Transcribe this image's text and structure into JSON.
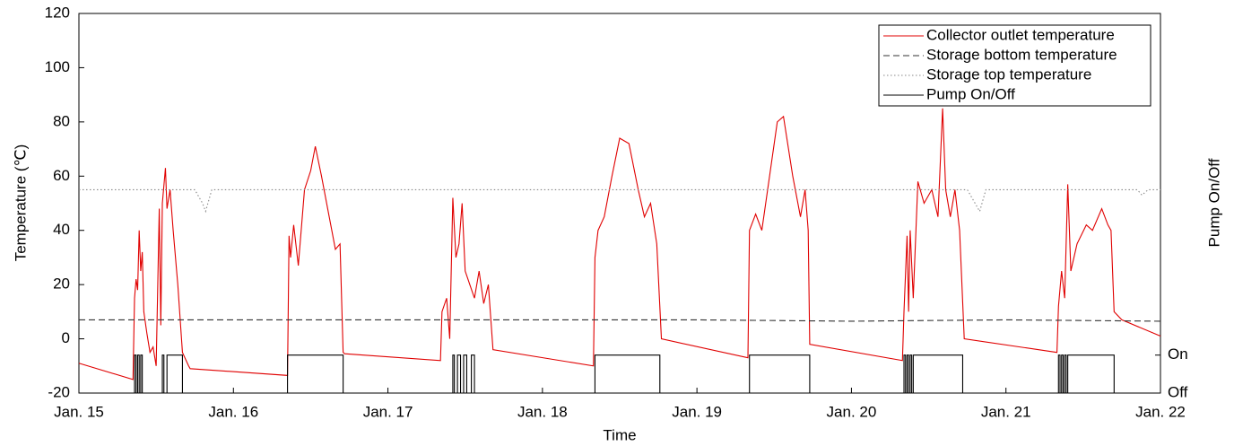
{
  "chart_data": {
    "type": "line",
    "xlabel": "Time",
    "ylabel": "Temperature (℃)",
    "y2label": "Pump On/Off",
    "xlim": [
      0,
      7
    ],
    "xticks": [
      {
        "value": 0,
        "label": "Jan. 15"
      },
      {
        "value": 1,
        "label": "Jan. 16"
      },
      {
        "value": 2,
        "label": "Jan. 17"
      },
      {
        "value": 3,
        "label": "Jan. 18"
      },
      {
        "value": 4,
        "label": "Jan. 19"
      },
      {
        "value": 5,
        "label": "Jan. 20"
      },
      {
        "value": 6,
        "label": "Jan. 21"
      },
      {
        "value": 7,
        "label": "Jan. 22"
      }
    ],
    "ylim": [
      -20,
      120
    ],
    "yticks": [
      -20,
      0,
      20,
      40,
      60,
      80,
      100,
      120
    ],
    "y2lim": [
      0,
      10
    ],
    "y2ticks": [
      {
        "value": 0,
        "label": "Off"
      },
      {
        "value": 1,
        "label": "On"
      }
    ],
    "legend": "upper right",
    "series": [
      {
        "name": "Collector outlet temperature",
        "color": "#e00000",
        "linestyle": "solid",
        "x": [
          0,
          0.35,
          0.36,
          0.37,
          0.38,
          0.39,
          0.4,
          0.41,
          0.42,
          0.44,
          0.46,
          0.48,
          0.5,
          0.52,
          0.53,
          0.54,
          0.56,
          0.57,
          0.59,
          0.61,
          0.64,
          0.67,
          0.71,
          0.72,
          1.35,
          1.36,
          1.37,
          1.39,
          1.42,
          1.46,
          1.5,
          1.53,
          1.57,
          1.62,
          1.66,
          1.69,
          1.71,
          1.72,
          2.34,
          2.35,
          2.38,
          2.4,
          2.42,
          2.44,
          2.46,
          2.48,
          2.5,
          2.53,
          2.56,
          2.59,
          2.62,
          2.65,
          2.68,
          3.33,
          3.34,
          3.36,
          3.4,
          3.45,
          3.5,
          3.56,
          3.62,
          3.66,
          3.7,
          3.74,
          3.77,
          4.33,
          4.34,
          4.38,
          4.42,
          4.47,
          4.52,
          4.56,
          4.62,
          4.67,
          4.7,
          4.72,
          4.73,
          5.33,
          5.34,
          5.36,
          5.37,
          5.38,
          5.4,
          5.43,
          5.47,
          5.52,
          5.56,
          5.59,
          5.61,
          5.64,
          5.67,
          5.7,
          5.73,
          6.33,
          6.34,
          6.36,
          6.38,
          6.4,
          6.42,
          6.46,
          6.52,
          6.56,
          6.62,
          6.66,
          6.68,
          6.7,
          6.75,
          7
        ],
        "values": [
          -9,
          -15,
          15,
          22,
          18,
          40,
          25,
          32,
          10,
          2,
          -5,
          -3,
          -10,
          48,
          5,
          50,
          63,
          48,
          55,
          40,
          20,
          -5,
          -10,
          -11,
          -13.5,
          38,
          30,
          42,
          27,
          55,
          62,
          71,
          60,
          45,
          33,
          35,
          -5,
          -5.5,
          -8,
          10,
          15,
          0,
          52,
          30,
          35,
          50,
          25,
          20,
          15,
          25,
          13,
          20,
          -4,
          -10,
          30,
          40,
          45,
          60,
          74,
          72,
          55,
          45,
          50,
          35,
          0,
          -7,
          40,
          46,
          40,
          60,
          80,
          82,
          60,
          45,
          55,
          40,
          -2,
          -8,
          10,
          38,
          10,
          40,
          15,
          58,
          50,
          55,
          45,
          85,
          55,
          45,
          55,
          40,
          0,
          -5,
          12,
          25,
          15,
          57,
          25,
          35,
          42,
          40,
          48,
          42,
          40,
          10,
          7,
          1
        ]
      },
      {
        "name": "Storage bottom temperature",
        "color": "#333333",
        "linestyle": "dashed",
        "x": [
          0,
          1,
          2,
          3,
          4,
          5,
          6,
          7
        ],
        "values": [
          7,
          7,
          7,
          7,
          7,
          6.5,
          7,
          6.5
        ]
      },
      {
        "name": "Storage top temperature",
        "color": "#888888",
        "linestyle": "dotted",
        "x": [
          0,
          0.75,
          0.8,
          0.82,
          0.86,
          5.75,
          5.8,
          5.83,
          5.87,
          6.85,
          6.88,
          6.92,
          7
        ],
        "values": [
          55,
          55,
          50,
          47,
          55,
          55,
          50,
          47,
          55,
          55,
          53,
          55,
          55
        ]
      },
      {
        "name": "Pump On/Off",
        "color": "#000000",
        "linestyle": "solid",
        "axis": "y2",
        "x": [
          0,
          0.36,
          0.36,
          0.37,
          0.37,
          0.38,
          0.38,
          0.39,
          0.39,
          0.4,
          0.4,
          0.41,
          0.41,
          0.54,
          0.54,
          0.55,
          0.55,
          0.57,
          0.57,
          0.67,
          0.67,
          1.35,
          1.35,
          1.71,
          1.71,
          2.42,
          2.42,
          2.43,
          2.43,
          2.45,
          2.45,
          2.47,
          2.47,
          2.49,
          2.49,
          2.51,
          2.51,
          2.54,
          2.54,
          2.56,
          2.56,
          3.34,
          3.34,
          3.76,
          3.76,
          4.34,
          4.34,
          4.73,
          4.73,
          5.34,
          5.34,
          5.35,
          5.35,
          5.36,
          5.36,
          5.37,
          5.37,
          5.38,
          5.38,
          5.39,
          5.39,
          5.4,
          5.4,
          5.72,
          5.72,
          6.34,
          6.34,
          6.35,
          6.35,
          6.36,
          6.36,
          6.37,
          6.37,
          6.38,
          6.38,
          6.39,
          6.39,
          6.4,
          6.4,
          6.7,
          6.7,
          7
        ],
        "values": [
          0,
          0,
          1,
          1,
          0,
          0,
          1,
          1,
          0,
          0,
          1,
          1,
          0,
          0,
          1,
          1,
          0,
          0,
          1,
          1,
          0,
          0,
          1,
          1,
          0,
          0,
          1,
          1,
          0,
          0,
          1,
          1,
          0,
          0,
          1,
          1,
          0,
          0,
          1,
          1,
          0,
          0,
          1,
          1,
          0,
          0,
          1,
          1,
          0,
          0,
          1,
          1,
          0,
          0,
          1,
          1,
          0,
          0,
          1,
          1,
          0,
          0,
          1,
          1,
          0,
          0,
          1,
          1,
          0,
          0,
          1,
          1,
          0,
          0,
          1,
          1,
          0,
          0,
          1,
          1,
          0,
          0
        ]
      }
    ]
  }
}
